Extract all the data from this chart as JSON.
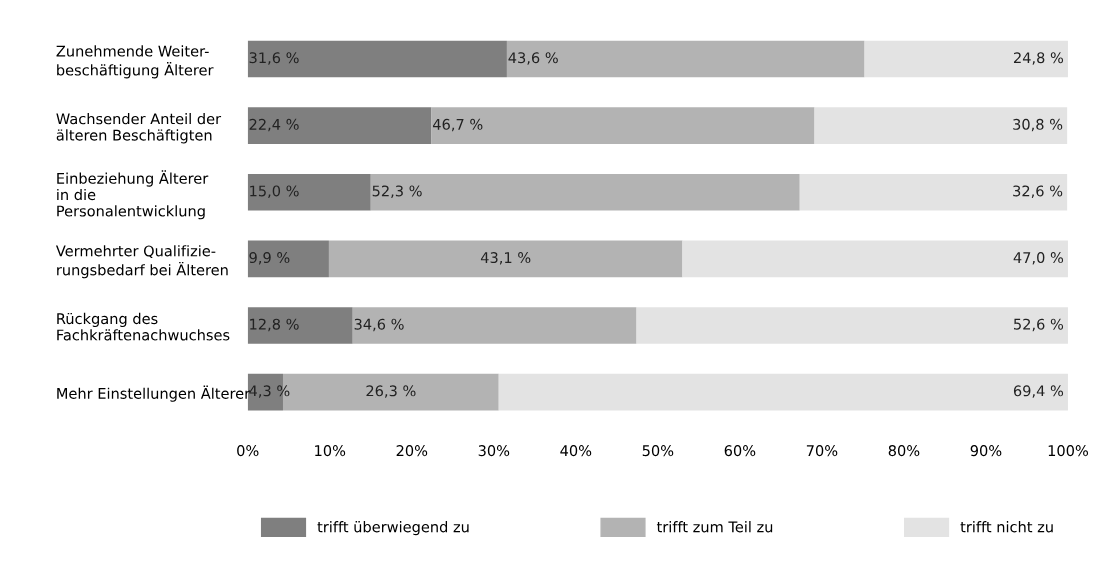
{
  "chart_data": {
    "type": "bar",
    "orientation": "horizontal",
    "stacked": true,
    "categories": [
      "Zunehmende Weiter-\nbeschäftigung Älterer",
      "Wachsender Anteil der\nälteren Beschäftigten",
      "Einbeziehung Älterer\nin die\nPersonalentwicklung",
      "Vermehrter Qualifizie-\nrungsbedarf bei Älteren",
      "Rückgang des\nFachkräftenachwuchses",
      "Mehr Einstellungen Älterer"
    ],
    "series": [
      {
        "name": "trifft überwiegend zu",
        "color": "#7f7f7f",
        "values": [
          31.6,
          22.4,
          15.0,
          9.9,
          12.8,
          4.3
        ],
        "value_labels": [
          "31,6 %",
          "22,4 %",
          "15,0 %",
          "9,9 %",
          "12,8 %",
          "4,3 %"
        ]
      },
      {
        "name": "trifft zum Teil zu",
        "color": "#b3b3b3",
        "values": [
          43.6,
          46.7,
          52.3,
          43.1,
          34.6,
          26.3
        ],
        "value_labels": [
          "43,6 %",
          "46,7 %",
          "52,3 %",
          "43,1 %",
          "34,6 %",
          "26,3 %"
        ]
      },
      {
        "name": "trifft nicht zu",
        "color": "#e3e3e3",
        "values": [
          24.8,
          30.8,
          32.6,
          47.0,
          52.6,
          69.4
        ],
        "value_labels": [
          "24,8 %",
          "30,8 %",
          "32,6 %",
          "47,0 %",
          "52,6 %",
          "69,4 %"
        ]
      }
    ],
    "xlim": [
      0,
      100
    ],
    "xticks": [
      {
        "value": 0,
        "label": "0%"
      },
      {
        "value": 10,
        "label": "10%"
      },
      {
        "value": 20,
        "label": "20%"
      },
      {
        "value": 30,
        "label": "30%"
      },
      {
        "value": 40,
        "label": "40%"
      },
      {
        "value": 50,
        "label": "50%"
      },
      {
        "value": 60,
        "label": "60%"
      },
      {
        "value": 70,
        "label": "70%"
      },
      {
        "value": 80,
        "label": "80%"
      },
      {
        "value": 90,
        "label": "90%"
      },
      {
        "value": 100,
        "label": "100%"
      }
    ],
    "grid": false,
    "legend": "bottom"
  }
}
